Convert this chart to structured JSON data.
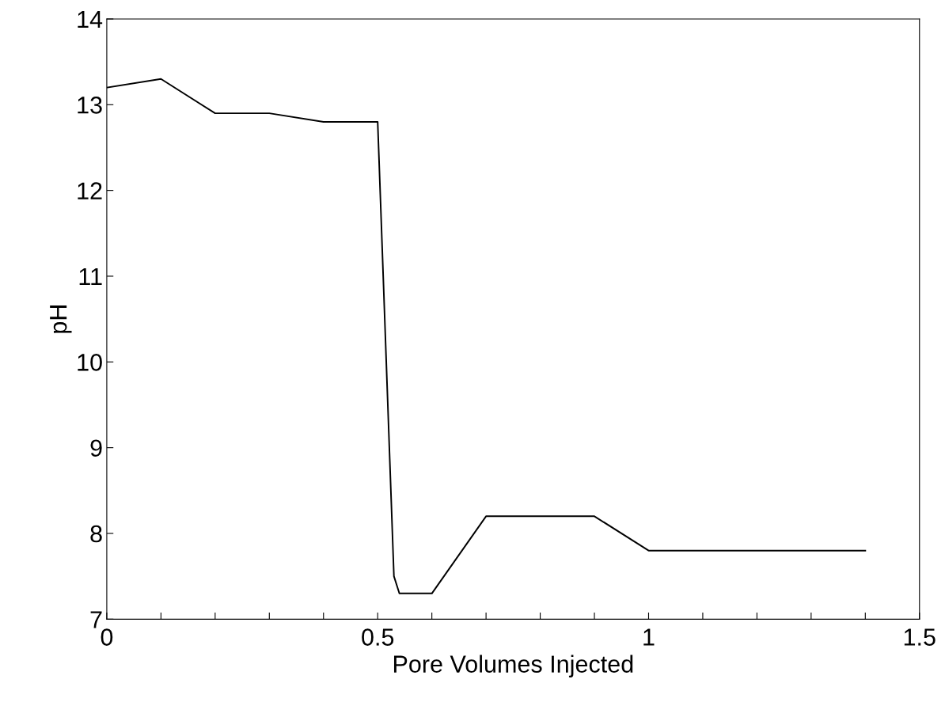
{
  "chart_data": {
    "type": "line",
    "xlabel": "Pore Volumes Injected",
    "ylabel": "pH",
    "x": [
      0,
      0.1,
      0.2,
      0.3,
      0.4,
      0.5,
      0.53,
      0.54,
      0.6,
      0.7,
      0.9,
      1.0,
      1.4
    ],
    "series": [
      {
        "color": "#000000",
        "values": [
          13.2,
          13.3,
          12.9,
          12.9,
          12.8,
          12.8,
          7.5,
          7.3,
          7.3,
          8.2,
          8.2,
          7.8,
          7.8
        ]
      }
    ],
    "xlim": [
      0,
      1.5
    ],
    "xticks": [
      0,
      {
        "value": 0.1,
        "label": null
      },
      {
        "value": 0.2,
        "label": null
      },
      {
        "value": 0.3,
        "label": null
      },
      {
        "value": 0.4,
        "label": null
      },
      0.5,
      {
        "value": 0.6,
        "label": null
      },
      {
        "value": 0.7,
        "label": null
      },
      {
        "value": 0.8,
        "label": null
      },
      {
        "value": 0.9,
        "label": null
      },
      1,
      {
        "value": 1.1,
        "label": null
      },
      {
        "value": 1.2,
        "label": null
      },
      {
        "value": 1.3,
        "label": null
      },
      {
        "value": 1.4,
        "label": null
      },
      1.5
    ],
    "ylim": [
      7,
      14
    ],
    "yticks": [
      7,
      8,
      9,
      10,
      11,
      12,
      13,
      14
    ],
    "grid": false,
    "marker": "none",
    "line_style": "solid"
  }
}
